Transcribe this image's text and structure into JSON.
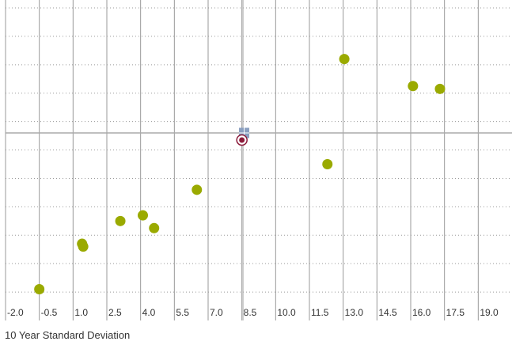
{
  "chart_data": {
    "type": "scatter",
    "title": "",
    "xlabel": "10 Year Standard Deviation",
    "ylabel": "",
    "x_ticks": [
      "-2.0",
      "-0.5",
      "1.0",
      "2.5",
      "4.0",
      "5.5",
      "7.0",
      "8.5",
      "10.0",
      "11.5",
      "13.0",
      "14.5",
      "16.0",
      "17.5",
      "19.0"
    ],
    "xlim": [
      -2.0,
      20.5
    ],
    "ylim": [
      0.0,
      11.0
    ],
    "grid": true,
    "reference_lines": {
      "x": 8.55,
      "y": 6.6
    },
    "colors": {
      "points": "#9aaa00",
      "benchmark_square": "#8a9fc0",
      "benchmark_circle": "#8b1a3a",
      "grid": "#999999",
      "reference": "#aaaaaa"
    },
    "series": [
      {
        "values": [
          {
            "x": -0.5,
            "y": 1.1
          },
          {
            "x": 1.4,
            "y": 2.7
          },
          {
            "x": 1.45,
            "y": 2.6
          },
          {
            "x": 3.1,
            "y": 3.5
          },
          {
            "x": 4.1,
            "y": 3.7
          },
          {
            "x": 4.6,
            "y": 3.25
          },
          {
            "x": 6.5,
            "y": 4.6
          },
          {
            "x": 12.3,
            "y": 5.5
          },
          {
            "x": 13.05,
            "y": 9.2
          },
          {
            "x": 16.1,
            "y": 8.25
          },
          {
            "x": 17.3,
            "y": 8.15
          }
        ]
      }
    ],
    "benchmark": {
      "x": 8.6,
      "y": 6.6
    },
    "benchmark2": {
      "x": 8.5,
      "y": 6.35
    }
  }
}
